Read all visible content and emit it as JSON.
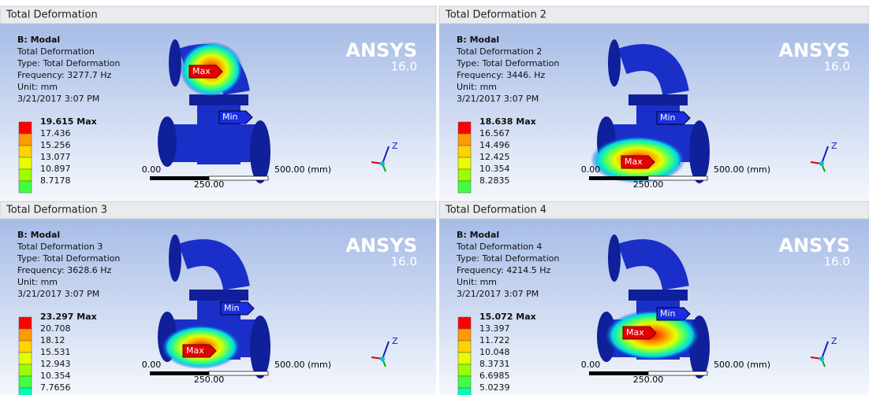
{
  "panels": [
    {
      "title": "Total Deformation",
      "info": [
        "B: Modal",
        "Total Deformation",
        "Type: Total Deformation",
        "Frequency: 3277.7 Hz",
        "Unit: mm",
        "3/21/2017 3:07 PM"
      ],
      "legend": [
        "19.615 Max",
        "17.436",
        "15.256",
        "13.077",
        "10.897",
        "8.7178"
      ],
      "max_label": "Max",
      "min_label": "Min"
    },
    {
      "title": "Total Deformation 2",
      "info": [
        "B: Modal",
        "Total Deformation 2",
        "Type: Total Deformation",
        "Frequency: 3446. Hz",
        "Unit: mm",
        "3/21/2017 3:07 PM"
      ],
      "legend": [
        "18.638 Max",
        "16.567",
        "14.496",
        "12.425",
        "10.354",
        "8.2835"
      ],
      "max_label": "Max",
      "min_label": "Min"
    },
    {
      "title": "Total Deformation 3",
      "info": [
        "B: Modal",
        "Total Deformation 3",
        "Type: Total Deformation",
        "Frequency: 3628.6 Hz",
        "Unit: mm",
        "3/21/2017 3:07 PM"
      ],
      "legend": [
        "23.297 Max",
        "20.708",
        "18.12",
        "15.531",
        "12.943",
        "10.354",
        "7.7656"
      ],
      "max_label": "Max",
      "min_label": "Min"
    },
    {
      "title": "Total Deformation 4",
      "info": [
        "B: Modal",
        "Total Deformation 4",
        "Type: Total Deformation",
        "Frequency: 4214.5 Hz",
        "Unit: mm",
        "3/21/2017 3:07 PM"
      ],
      "legend": [
        "15.072 Max",
        "13.397",
        "11.722",
        "10.048",
        "8.3731",
        "6.6985",
        "5.0239"
      ],
      "max_label": "Max",
      "min_label": "Min"
    }
  ],
  "logo": "ANSYS",
  "version": "16.0",
  "scale": {
    "start": "0.00",
    "mid": "250.00",
    "end": "500.00 (mm)"
  },
  "axis_label": "Z"
}
